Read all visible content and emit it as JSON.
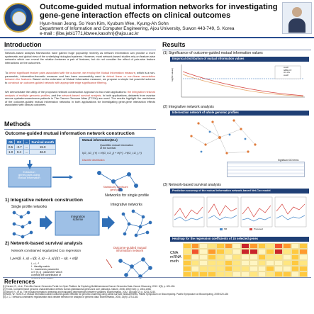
{
  "header": {
    "title": "Outcome-guided mutual information networks for investigating gene-gene interaction effects on clinical outcomes",
    "authors": "Hyun-hwan Jeong, So Yeon Kim, Kyubum Wee, Kyung-Ah Sohn",
    "affiliation": "Department of Information and Computer Engineering, Ajou University, Suwon 443-749, S. Korea",
    "email": "e-mail : {libe,jebi1771,kbwee,kasohn}@ajou.ac.kr"
  },
  "introduction": {
    "title": "Introduction",
    "p1": "Network-based analysis frameworks have gained huge popularity recently as network information can provide a more systematic and global view of the underlying biological systems. However, most network-based studies rely on feature-wise networks which can reveal the relation between a pair of features, but do not consider the effect of pair-wise feature interactions on the outcomes.",
    "p2_prefix": "To ",
    "p2_red1": "detect significant feature pairs associated with the outcome, we employ the Mutual Information measure",
    "p2_mid1": ", which is a non-parametric, information-theoretic measure and has been successfully used to ",
    "p2_red2": "detect linear or non-linear association between the features",
    "p2_mid2": ". Based on the extension of Mutual Information measure, we propose a simple but powerful scheme to ",
    "p2_red3": "construct an outcome-guided network with appropriate edge significance filtering",
    "p2_end": ".",
    "p3_prefix": "We demonstrate the utility of the proposed network construction approach to two main applications: ",
    "p3_red1": "the integrative network analysis of multiple genomic profiles",
    "p3_mid": ", and the ",
    "p3_red2": "network-based survival analysis",
    "p3_end": ". In both applications, datasets from ovarian serous cystadenocarcinoma patients in The Cancer Genome Atlas (TCGA) are used. The results highlight the usefulness of the outcome-guided mutual information networks in both applications for investigating gene-gene interaction effects associated with clinical outcomes."
  },
  "methods": {
    "title": "Methods",
    "subtitle": "Outcome-guided mutual information network construction",
    "table": {
      "headers": [
        "G1",
        "G2",
        "...",
        "Survival month"
      ],
      "rows": [
        [
          "0.5",
          "-0.7",
          "...",
          "15.0"
        ],
        [
          "1.0",
          "0.4",
          "...",
          "46.0"
        ]
      ]
    },
    "mi_box_title": "Mutual information(M.I.)",
    "mi_box_lines": [
      "Quantifies mutual information",
      "of the survival"
    ],
    "mi_formula": "I(G_i,G_j;Y) = H(G_i,G_j) + H(Y) - H(G_i,G_j,Y)",
    "discrete": "Discrete distribution",
    "extraction": "Extraction\ngenes pairs using\nMutual information",
    "significant": "Statistically significant\ngene pair",
    "networks_single": "Networks for single profile",
    "integrative_title": "1) Integrative network construction",
    "single_profile_networks": "Single profile networks",
    "integrative_networks": "Integrative networks",
    "integration_scheme": "Integration\nscheme",
    "survival_title": "2) Network-based survival analysis",
    "cox_caption": "Network constrained regularized Cox regression",
    "og_caption": "Outcome-guided mutual information network",
    "cox_formula": "l_pen(β, λ_α) = l(β, λ_α) − λ_α[ β(1 − α)L + αI]β",
    "cox_notes": [
      "L = L⁻¹",
      "I : identity matrix",
      "λ : maximizes parameter",
      "α ∈ [0,1] : parameter which",
      "controls the contribution of",
      "network information"
    ]
  },
  "results": {
    "title": "Results",
    "r1": "(1)  Significance of outcome-guided mutual information values",
    "r1_bar": "Empirical distribution of mutual information values",
    "r1_ylabel": "log(MI values)",
    "r1_legend": [
      "cutoff",
      "GBM-OV",
      "OV-OS",
      "cutoff"
    ],
    "r2": "(2) Integrative network analysis",
    "r2_bar": "Intersection network of whole genomic profiles",
    "r2_table_title": "Significant GO terms",
    "r3": "(3) Network-based survival analysis",
    "r3_bar": "Prediction accuracy of the mutual information network-based Net-Cox model",
    "r3_legend": [
      "NB",
      "Proposed"
    ],
    "heat_bar": "Heatmap for the regression coefficients of 15 selected genes",
    "heat_labels": [
      "CNA",
      "mRNA",
      "meth"
    ]
  },
  "references": {
    "title": "References",
    "lines": [
      "[1] Cerami, E., et al., The cBio Cancer Genomics Portal: An Open Platform for Exploring Multidimensional Cancer Genomics Data. Cancer Discovery, 2012. 2(5): p. 401-404.",
      "[2] TCGA, Comprehensive genomic characterization defines human glioblastoma genes and core pathways. Nature, 2008. 455(7216): p. 1061-1068.",
      "[3] Steuer, R., et al., The mutual information: detecting and evaluating dependencies between variables. Bioinformatics, 2002. 18(suppl 2): p. S231-S240.",
      "[4] Bolte, W., Sohn K-A: Mutual information-based outcome-guided network for genomic clustering using partial survival measurements. Pacific Symposium on Biocomputing. Pacific Symposium on Biocomputing, 2009:420-426",
      "[5] Li, C.: Network-constrained regularization and variable selection for analysis of genomic data. Bioinformatics, 2008, 24(9):1175-1182"
    ]
  },
  "colors": {
    "accent": "#1f3f75",
    "box": "#c7dcf2",
    "red": "#c0392b"
  }
}
